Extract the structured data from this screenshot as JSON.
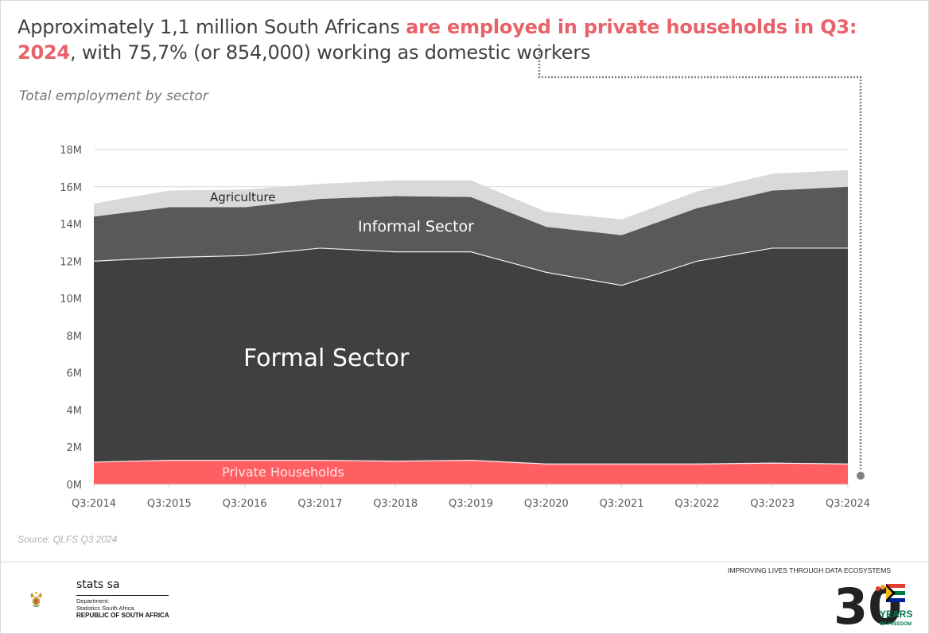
{
  "headline": {
    "part1": "Approximately 1,1 million South Africans ",
    "highlight": "are employed in private households in Q3: 2024",
    "part2": ", with 75,7% (or 854,000) working as domestic workers"
  },
  "subtitle": "Total employment by sector",
  "source": "Source: QLFS Q3 2024",
  "colors": {
    "private_households": "#ff5f63",
    "formal_sector": "#404040",
    "informal_sector": "#595959",
    "agriculture": "#d9d9d9",
    "highlight": "#e8626a",
    "annotation": "#808080"
  },
  "chart_data": {
    "type": "area",
    "stacked": true,
    "title": "Total employment by sector",
    "xlabel": "",
    "ylabel": "",
    "categories": [
      "Q3:2014",
      "Q3:2015",
      "Q3:2016",
      "Q3:2017",
      "Q3:2018",
      "Q3:2019",
      "Q3:2020",
      "Q3:2021",
      "Q3:2022",
      "Q3:2023",
      "Q3:2024"
    ],
    "ylim": [
      0,
      18
    ],
    "yticks": [
      0,
      2,
      4,
      6,
      8,
      10,
      12,
      14,
      16,
      18
    ],
    "ytick_labels": [
      "0M",
      "2M",
      "4M",
      "6M",
      "8M",
      "10M",
      "12M",
      "14M",
      "16M",
      "18M"
    ],
    "grid": true,
    "legend": "inline-labels",
    "unit": "millions",
    "series": [
      {
        "name": "Private Households",
        "values": [
          1.2,
          1.3,
          1.3,
          1.3,
          1.25,
          1.3,
          1.1,
          1.1,
          1.1,
          1.15,
          1.1
        ]
      },
      {
        "name": "Formal Sector",
        "values": [
          10.8,
          10.9,
          11.0,
          11.4,
          11.25,
          11.2,
          10.3,
          9.6,
          10.9,
          11.55,
          11.6
        ]
      },
      {
        "name": "Informal Sector",
        "values": [
          2.4,
          2.7,
          2.6,
          2.65,
          3.0,
          2.95,
          2.45,
          2.7,
          2.85,
          3.1,
          3.3
        ]
      },
      {
        "name": "Agriculture",
        "values": [
          0.7,
          0.9,
          0.95,
          0.8,
          0.85,
          0.9,
          0.8,
          0.85,
          0.9,
          0.9,
          0.9
        ]
      }
    ],
    "annotations": [
      {
        "text": "Dotted connector from headline to Private Households at Q3:2024"
      }
    ]
  },
  "footer": {
    "org_name": "stats sa",
    "dept_line1": "Department:",
    "dept_line2": "Statistics South Africa",
    "republic": "REPUBLIC OF SOUTH AFRICA",
    "tagline": "IMPROVING LIVES THROUGH DATA ECOSYSTEMS",
    "anniversary_number": "30",
    "anniversary_word1": "YEARS",
    "anniversary_word2": "OF FREEDOM"
  }
}
